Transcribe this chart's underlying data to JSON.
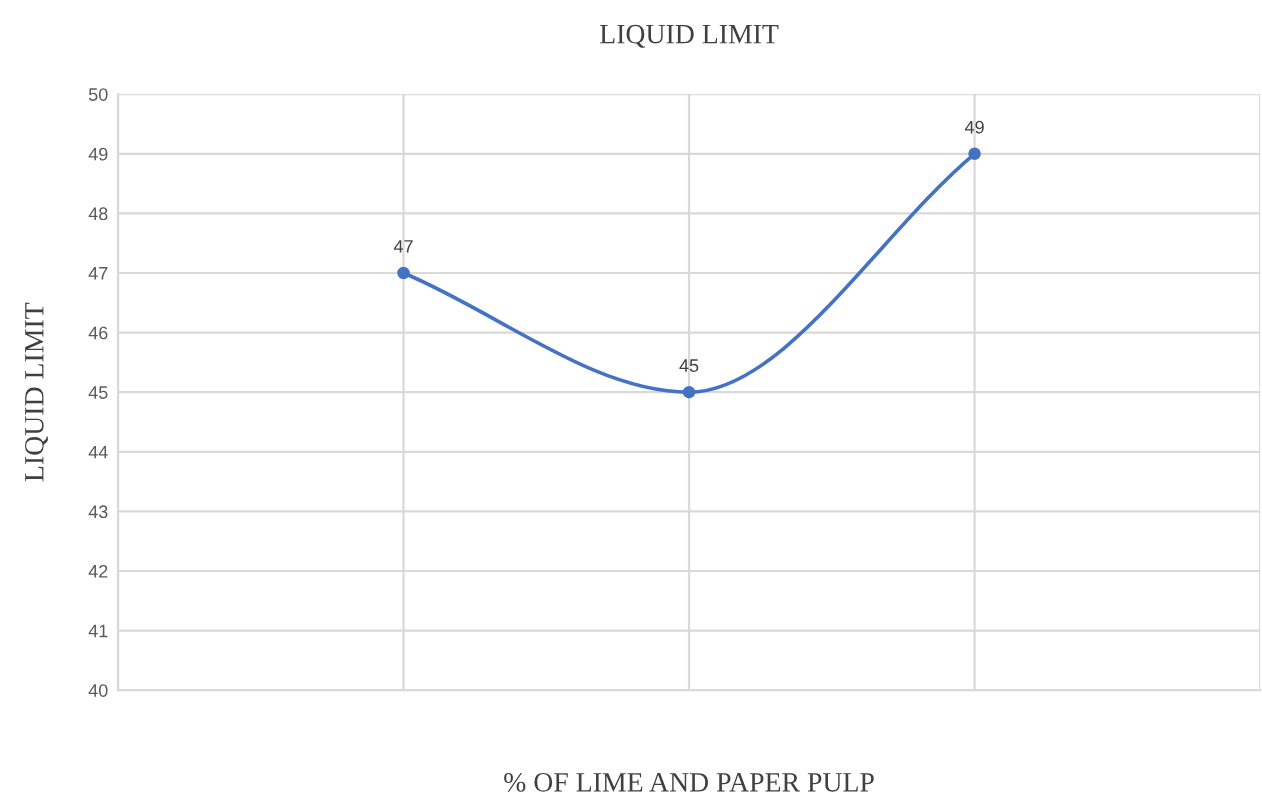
{
  "chart_data": {
    "type": "line",
    "title": "LIQUID LIMIT",
    "xlabel": "% OF LIME AND PAPER PULP",
    "ylabel": "LIQUID LIMIT",
    "categories": [
      null,
      null,
      null
    ],
    "series": [
      {
        "color": "#4472c4",
        "values": [
          47,
          45,
          49
        ]
      }
    ],
    "ylim": [
      40,
      50
    ],
    "yticks": [
      40,
      41,
      42,
      43,
      44,
      45,
      46,
      47,
      48,
      49,
      50
    ],
    "grid": true,
    "marker": "circle",
    "line_style": "solid",
    "data_labels": true
  }
}
